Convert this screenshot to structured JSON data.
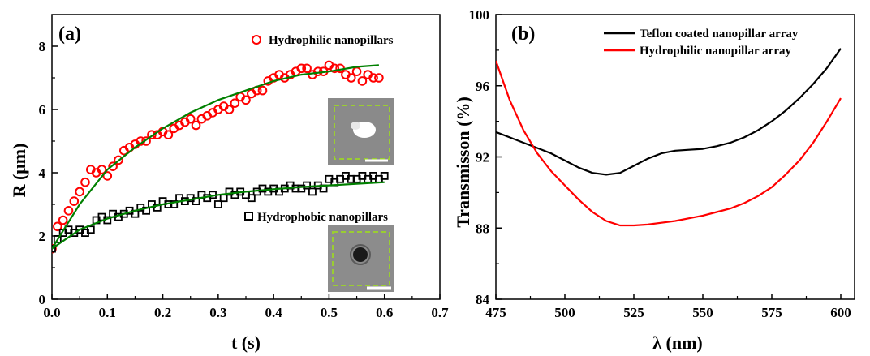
{
  "chart_data": [
    {
      "type": "scatter",
      "panel_label": "(a)",
      "xlabel": "t (s)",
      "ylabel": "R (μm)",
      "xlim": [
        0.0,
        0.7
      ],
      "ylim": [
        0,
        9
      ],
      "xticks": [
        "0.0",
        "0.1",
        "0.2",
        "0.3",
        "0.4",
        "0.5",
        "0.6",
        "0.7"
      ],
      "yticks": [
        "0",
        "2",
        "4",
        "6",
        "8"
      ],
      "grid": false,
      "legend_placement": "per-series inline labels",
      "series": [
        {
          "name": "Hydrophilic nanopillars",
          "marker": "open-circle",
          "color": "#ff0000",
          "x": [
            0.0,
            0.01,
            0.02,
            0.03,
            0.04,
            0.05,
            0.06,
            0.07,
            0.08,
            0.09,
            0.1,
            0.11,
            0.12,
            0.13,
            0.14,
            0.15,
            0.16,
            0.17,
            0.18,
            0.19,
            0.2,
            0.21,
            0.22,
            0.23,
            0.24,
            0.25,
            0.26,
            0.27,
            0.28,
            0.29,
            0.3,
            0.31,
            0.32,
            0.33,
            0.34,
            0.35,
            0.36,
            0.37,
            0.38,
            0.39,
            0.4,
            0.41,
            0.42,
            0.43,
            0.44,
            0.45,
            0.46,
            0.47,
            0.48,
            0.49,
            0.5,
            0.51,
            0.52,
            0.53,
            0.54,
            0.55,
            0.56,
            0.57,
            0.58,
            0.59
          ],
          "y": [
            1.6,
            2.3,
            2.5,
            2.8,
            3.1,
            3.4,
            3.7,
            4.1,
            4.0,
            4.1,
            3.9,
            4.2,
            4.4,
            4.7,
            4.8,
            4.9,
            5.0,
            5.0,
            5.2,
            5.2,
            5.3,
            5.2,
            5.4,
            5.5,
            5.6,
            5.7,
            5.5,
            5.7,
            5.8,
            5.9,
            6.0,
            6.1,
            6.0,
            6.2,
            6.4,
            6.3,
            6.5,
            6.6,
            6.6,
            6.9,
            7.0,
            7.1,
            7.0,
            7.1,
            7.2,
            7.3,
            7.3,
            7.1,
            7.2,
            7.2,
            7.4,
            7.3,
            7.3,
            7.1,
            7.0,
            7.2,
            6.9,
            7.1,
            7.0,
            7.0
          ]
        },
        {
          "name": "Hydrophobic nanopillars",
          "marker": "open-square",
          "color": "#000000",
          "x": [
            0.0,
            0.01,
            0.02,
            0.03,
            0.04,
            0.05,
            0.06,
            0.07,
            0.08,
            0.09,
            0.1,
            0.11,
            0.12,
            0.13,
            0.14,
            0.15,
            0.16,
            0.17,
            0.18,
            0.19,
            0.2,
            0.21,
            0.22,
            0.23,
            0.24,
            0.25,
            0.26,
            0.27,
            0.28,
            0.29,
            0.3,
            0.31,
            0.32,
            0.33,
            0.34,
            0.35,
            0.36,
            0.37,
            0.38,
            0.39,
            0.4,
            0.41,
            0.42,
            0.43,
            0.44,
            0.45,
            0.46,
            0.47,
            0.48,
            0.49,
            0.5,
            0.51,
            0.52,
            0.53,
            0.54,
            0.55,
            0.56,
            0.57,
            0.58,
            0.59,
            0.6
          ],
          "y": [
            1.6,
            1.9,
            2.1,
            2.2,
            2.1,
            2.2,
            2.1,
            2.2,
            2.5,
            2.6,
            2.5,
            2.7,
            2.6,
            2.7,
            2.8,
            2.7,
            2.9,
            2.8,
            3.0,
            2.9,
            3.1,
            3.0,
            3.0,
            3.2,
            3.1,
            3.2,
            3.1,
            3.3,
            3.2,
            3.3,
            3.0,
            3.2,
            3.4,
            3.3,
            3.4,
            3.3,
            3.2,
            3.4,
            3.5,
            3.4,
            3.5,
            3.4,
            3.5,
            3.6,
            3.5,
            3.5,
            3.6,
            3.4,
            3.6,
            3.5,
            3.8,
            3.7,
            3.8,
            3.9,
            3.8,
            3.8,
            3.9,
            3.8,
            3.9,
            3.8,
            3.9
          ]
        },
        {
          "name": "",
          "type": "line",
          "role": "fit",
          "color": "#008000",
          "x": [
            0.0,
            0.05,
            0.1,
            0.15,
            0.2,
            0.25,
            0.3,
            0.35,
            0.4,
            0.45,
            0.5,
            0.55,
            0.59
          ],
          "y": [
            1.6,
            3.0,
            4.1,
            4.8,
            5.4,
            5.9,
            6.3,
            6.6,
            6.9,
            7.1,
            7.2,
            7.35,
            7.4
          ]
        },
        {
          "name": "",
          "type": "line",
          "role": "fit",
          "color": "#008000",
          "x": [
            0.0,
            0.05,
            0.1,
            0.15,
            0.2,
            0.25,
            0.3,
            0.35,
            0.4,
            0.45,
            0.5,
            0.55,
            0.6
          ],
          "y": [
            1.6,
            2.2,
            2.55,
            2.8,
            3.0,
            3.15,
            3.3,
            3.4,
            3.48,
            3.55,
            3.6,
            3.65,
            3.7
          ]
        }
      ],
      "insets": [
        {
          "kind": "micrograph",
          "spot": "bright",
          "bg": "#8a8a8a",
          "box_color": "#9acd32"
        },
        {
          "kind": "micrograph",
          "spot": "dark",
          "bg": "#8c8c8c",
          "box_color": "#9acd32"
        }
      ]
    },
    {
      "type": "line",
      "panel_label": "(b)",
      "xlabel": "λ (nm)",
      "ylabel": "Transmisson (%)",
      "xlim": [
        475,
        605
      ],
      "ylim": [
        84,
        100
      ],
      "xticks": [
        475,
        500,
        525,
        550,
        575,
        600
      ],
      "yticks": [
        84,
        88,
        92,
        96,
        100
      ],
      "grid": false,
      "legend_placement": "top-right",
      "series": [
        {
          "name": "Teflon coated nanopillar array",
          "color": "#000000",
          "x": [
            475,
            480,
            485,
            490,
            495,
            500,
            505,
            510,
            515,
            520,
            525,
            530,
            535,
            540,
            545,
            550,
            555,
            560,
            565,
            570,
            575,
            580,
            585,
            590,
            595,
            600
          ],
          "y": [
            93.4,
            93.1,
            92.8,
            92.5,
            92.2,
            91.8,
            91.4,
            91.1,
            91.0,
            91.1,
            91.5,
            91.9,
            92.2,
            92.35,
            92.4,
            92.45,
            92.6,
            92.8,
            93.1,
            93.5,
            94.0,
            94.6,
            95.3,
            96.1,
            97.0,
            98.1
          ]
        },
        {
          "name": "Hydrophilic nanopillar array",
          "color": "#ff0000",
          "x": [
            475,
            480,
            485,
            490,
            495,
            500,
            505,
            510,
            515,
            520,
            525,
            530,
            535,
            540,
            545,
            550,
            555,
            560,
            565,
            570,
            575,
            580,
            585,
            590,
            595,
            600
          ],
          "y": [
            97.4,
            95.2,
            93.5,
            92.2,
            91.2,
            90.4,
            89.6,
            88.9,
            88.4,
            88.15,
            88.15,
            88.2,
            88.3,
            88.4,
            88.55,
            88.7,
            88.9,
            89.1,
            89.4,
            89.8,
            90.3,
            91.0,
            91.8,
            92.8,
            94.0,
            95.3
          ]
        }
      ]
    }
  ]
}
